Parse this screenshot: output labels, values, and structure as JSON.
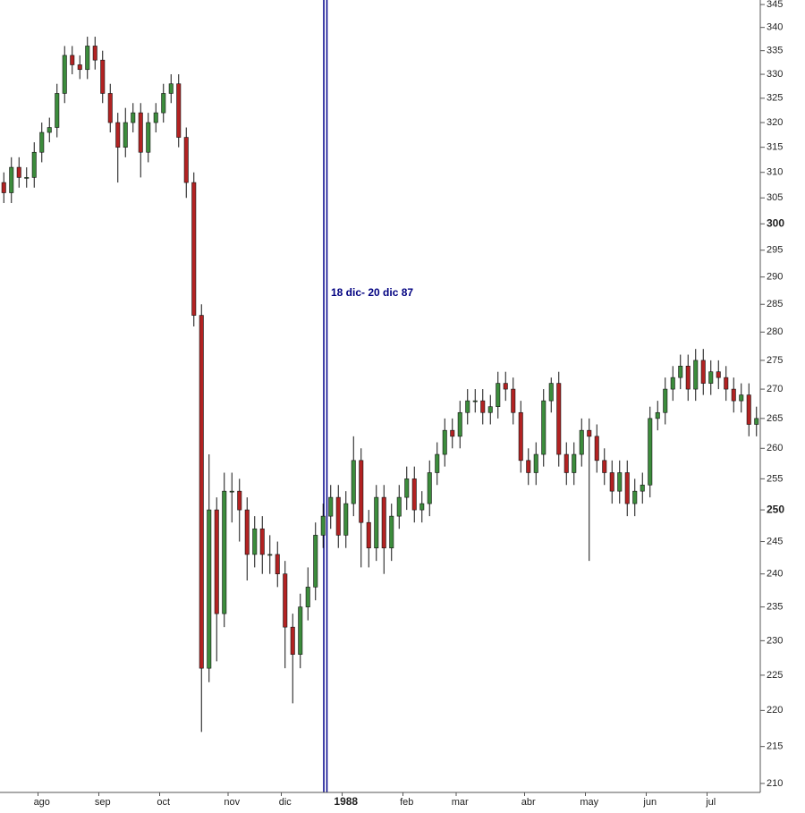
{
  "chart_data": {
    "type": "candlestick",
    "annotation": "18 dic- 20 dic 87",
    "categories": [
      null,
      null,
      null,
      null,
      null,
      "ago",
      null,
      null,
      null,
      null,
      null,
      null,
      null,
      "sep",
      null,
      null,
      null,
      null,
      null,
      null,
      null,
      "oct",
      null,
      null,
      null,
      null,
      null,
      null,
      null,
      null,
      "nov",
      null,
      null,
      null,
      null,
      null,
      null,
      "dic",
      null,
      null,
      null,
      null,
      null,
      null,
      null,
      "1988",
      null,
      null,
      null,
      null,
      null,
      null,
      null,
      "feb",
      null,
      null,
      null,
      null,
      null,
      null,
      "mar",
      null,
      null,
      null,
      null,
      null,
      null,
      null,
      null,
      "abr",
      null,
      null,
      null,
      null,
      null,
      null,
      null,
      "may",
      null,
      null,
      null,
      null,
      null,
      null,
      null,
      "jun",
      null,
      null,
      null,
      null,
      null,
      null,
      null,
      "jul",
      null,
      null,
      null,
      null,
      null,
      null
    ],
    "open": [
      308,
      306,
      311,
      309,
      309,
      314,
      318,
      319,
      326,
      334,
      332,
      331,
      336,
      333,
      326,
      320,
      315,
      320,
      322,
      314,
      320,
      322,
      326,
      328,
      317,
      308,
      283,
      226,
      250,
      234,
      253,
      253,
      250,
      243,
      247,
      243,
      243,
      240,
      232,
      228,
      235,
      238,
      246,
      249,
      252,
      246,
      251,
      258,
      248,
      244,
      252,
      244,
      249,
      252,
      255,
      250,
      251,
      256,
      259,
      263,
      262,
      266,
      268,
      268,
      266,
      267,
      271,
      270,
      266,
      258,
      256,
      259,
      268,
      271,
      259,
      256,
      259,
      263,
      262,
      258,
      256,
      253,
      256,
      251,
      253,
      254,
      265,
      266,
      270,
      272,
      274,
      270,
      275,
      271,
      273,
      272,
      270,
      268,
      269,
      264
    ],
    "high": [
      310,
      313,
      313,
      311,
      316,
      320,
      321,
      328,
      336,
      336,
      334,
      338,
      338,
      335,
      328,
      322,
      323,
      324,
      324,
      322,
      324,
      328,
      330,
      330,
      319,
      310,
      285,
      259,
      252,
      256,
      256,
      255,
      252,
      249,
      249,
      246,
      245,
      242,
      234,
      237,
      241,
      248,
      251,
      254,
      254,
      253,
      262,
      260,
      250,
      254,
      254,
      251,
      254,
      257,
      257,
      253,
      258,
      261,
      265,
      265,
      268,
      270,
      270,
      270,
      269,
      273,
      273,
      272,
      268,
      260,
      261,
      270,
      272,
      273,
      261,
      261,
      265,
      265,
      264,
      260,
      258,
      258,
      258,
      255,
      256,
      267,
      268,
      272,
      274,
      276,
      276,
      277,
      277,
      275,
      275,
      274,
      272,
      271,
      271,
      267
    ],
    "low": [
      304,
      304,
      307,
      307,
      307,
      312,
      316,
      317,
      324,
      330,
      329,
      329,
      331,
      324,
      318,
      308,
      313,
      318,
      309,
      312,
      318,
      320,
      324,
      315,
      305,
      281,
      217,
      224,
      227,
      232,
      248,
      245,
      239,
      241,
      240,
      240,
      238,
      226,
      221,
      226,
      233,
      236,
      244,
      247,
      244,
      244,
      249,
      241,
      241,
      242,
      240,
      242,
      247,
      250,
      248,
      248,
      249,
      254,
      257,
      260,
      260,
      264,
      266,
      264,
      264,
      265,
      268,
      264,
      256,
      254,
      254,
      257,
      266,
      257,
      254,
      254,
      257,
      242,
      256,
      254,
      251,
      251,
      249,
      249,
      251,
      252,
      263,
      264,
      268,
      270,
      268,
      268,
      269,
      269,
      270,
      268,
      266,
      266,
      262,
      262
    ],
    "close": [
      306,
      311,
      309,
      309,
      314,
      318,
      319,
      326,
      334,
      332,
      331,
      336,
      333,
      326,
      320,
      315,
      320,
      322,
      314,
      320,
      322,
      326,
      328,
      317,
      308,
      283,
      226,
      250,
      234,
      253,
      253,
      250,
      243,
      247,
      243,
      243,
      240,
      232,
      228,
      235,
      238,
      246,
      249,
      252,
      246,
      251,
      258,
      248,
      244,
      252,
      244,
      249,
      252,
      255,
      250,
      251,
      256,
      259,
      263,
      262,
      266,
      268,
      268,
      266,
      267,
      271,
      270,
      266,
      258,
      256,
      259,
      268,
      271,
      259,
      256,
      259,
      263,
      262,
      258,
      256,
      253,
      256,
      251,
      253,
      254,
      265,
      266,
      270,
      272,
      274,
      270,
      275,
      271,
      273,
      272,
      270,
      268,
      269,
      264,
      265
    ],
    "up_color": "#3c8c3c",
    "down_color": "#b22222",
    "log_scale": true,
    "ylim": [
      208.8,
      346
    ],
    "yticks": [
      210,
      215,
      220,
      225,
      230,
      235,
      240,
      245,
      250,
      255,
      260,
      265,
      270,
      275,
      280,
      285,
      290,
      295,
      300,
      305,
      310,
      315,
      320,
      325,
      330,
      335,
      340,
      345
    ]
  }
}
